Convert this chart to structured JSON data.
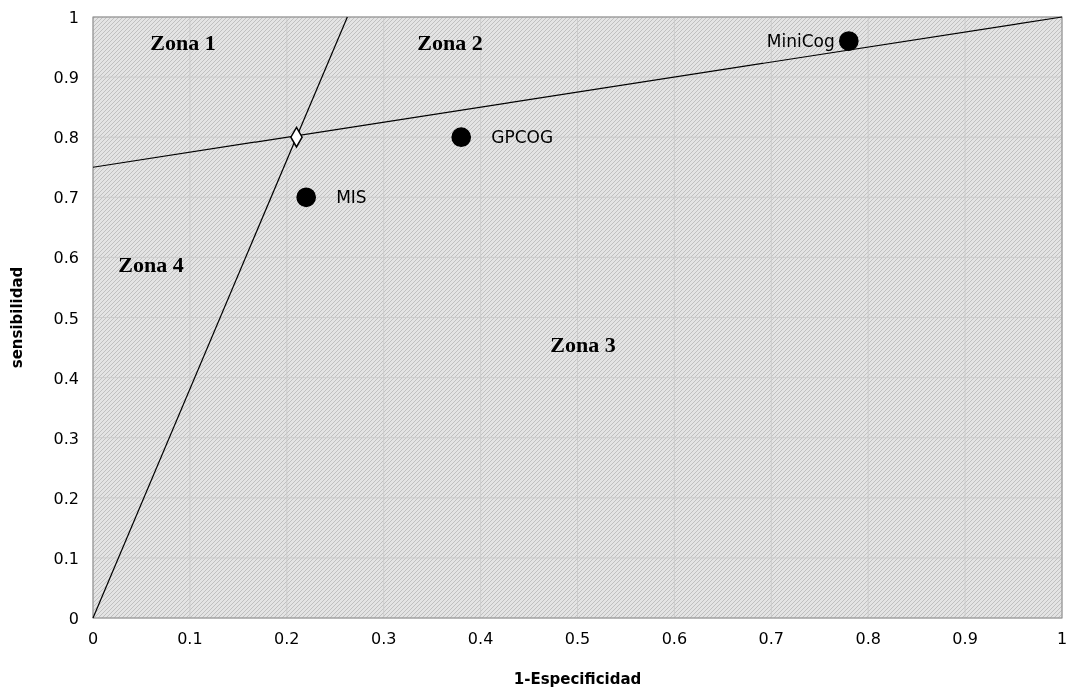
{
  "chart_data": {
    "type": "scatter",
    "xlabel": "1-Especificidad",
    "ylabel": "sensibilidad",
    "xlim": [
      0,
      1
    ],
    "ylim": [
      0,
      1
    ],
    "xticks": [
      0,
      0.1,
      0.2,
      0.3,
      0.4,
      0.5,
      0.6,
      0.7,
      0.8,
      0.9,
      1
    ],
    "yticks": [
      0,
      0.1,
      0.2,
      0.3,
      0.4,
      0.5,
      0.6,
      0.7,
      0.8,
      0.9,
      1
    ],
    "grid": true,
    "series": [
      {
        "type": "line",
        "color": "#000000",
        "x": [
          0,
          0.2625
        ],
        "values": [
          0,
          1
        ]
      },
      {
        "type": "line",
        "color": "#000000",
        "x": [
          0,
          1
        ],
        "values": [
          0.75,
          1
        ]
      },
      {
        "color": "#000000",
        "x": [
          0.21
        ],
        "values": [
          0.8
        ],
        "marker": "diamond"
      },
      {
        "name": "MiniCog",
        "color": "#000000",
        "x": [
          0.78
        ],
        "values": [
          0.96
        ],
        "marker": "circle"
      },
      {
        "name": "GPCOG",
        "color": "#000000",
        "x": [
          0.38
        ],
        "values": [
          0.8
        ],
        "marker": "circle"
      },
      {
        "name": "MIS",
        "color": "#000000",
        "x": [
          0.22
        ],
        "values": [
          0.7
        ],
        "marker": "circle"
      }
    ],
    "annotations": [
      "Zona 1",
      "Zona 2",
      "Zona 3",
      "Zona 4"
    ]
  }
}
